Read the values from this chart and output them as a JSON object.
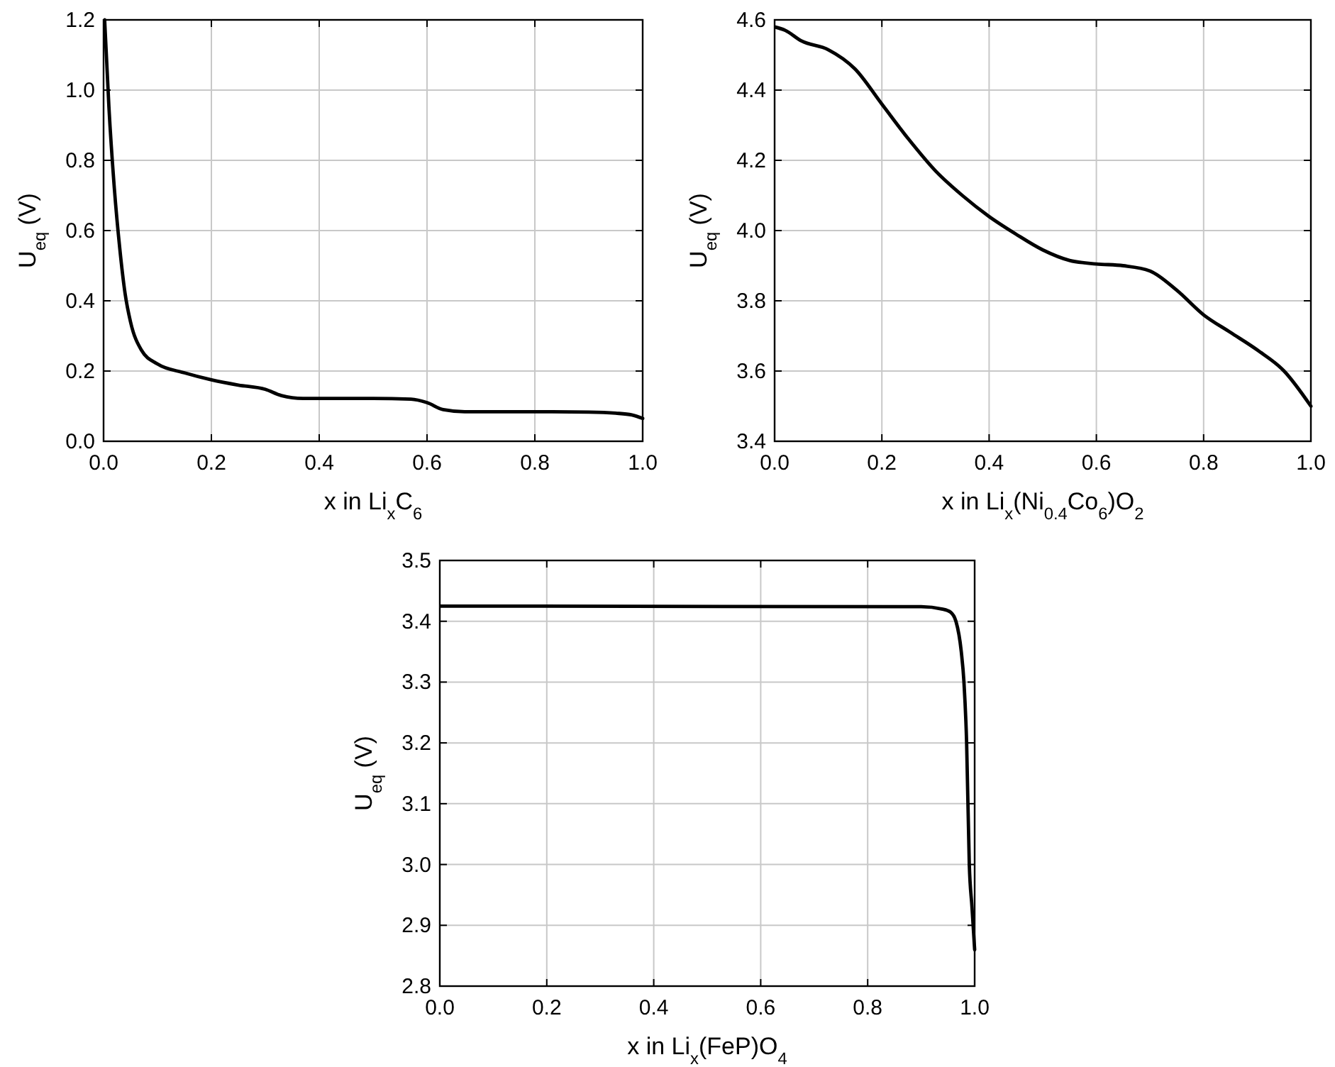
{
  "chart_data": [
    {
      "type": "line",
      "xlabel": "x in Li$_{x}$C$_{6}$",
      "ylabel": "U$_{eq}$ (V)",
      "xlim": [
        0,
        1
      ],
      "ylim": [
        0,
        1.2
      ],
      "grid": true,
      "xticks": [
        {
          "value": 0,
          "label": "0.0"
        },
        {
          "value": 0.2,
          "label": "0.2"
        },
        {
          "value": 0.4,
          "label": "0.4"
        },
        {
          "value": 0.6,
          "label": "0.6"
        },
        {
          "value": 0.8,
          "label": "0.8"
        },
        {
          "value": 1,
          "label": "1.0"
        }
      ],
      "yticks": [
        {
          "value": 0,
          "label": "0.0"
        },
        {
          "value": 0.2,
          "label": "0.2"
        },
        {
          "value": 0.4,
          "label": "0.4"
        },
        {
          "value": 0.6,
          "label": "0.6"
        },
        {
          "value": 0.8,
          "label": "0.8"
        },
        {
          "value": 1,
          "label": "1.0"
        },
        {
          "value": 1.2,
          "label": "1.2"
        }
      ],
      "x": [
        0.002,
        0.01,
        0.02,
        0.03,
        0.04,
        0.05,
        0.07,
        0.1,
        0.15,
        0.2,
        0.25,
        0.3,
        0.33,
        0.37,
        0.5,
        0.57,
        0.6,
        0.63,
        0.67,
        0.8,
        0.9,
        0.95,
        0.98,
        1.0
      ],
      "series": [
        {
          "color": "#000000",
          "values": [
            1.2,
            0.95,
            0.72,
            0.55,
            0.42,
            0.34,
            0.26,
            0.22,
            0.195,
            0.175,
            0.16,
            0.148,
            0.13,
            0.122,
            0.122,
            0.12,
            0.11,
            0.09,
            0.084,
            0.084,
            0.083,
            0.08,
            0.075,
            0.065
          ]
        }
      ]
    },
    {
      "type": "line",
      "xlabel": "x in Li$_{x}$(Ni$_{0.4}$Co$_{6}$)O$_{2}$",
      "ylabel": "U$_{eq}$ (V)",
      "xlim": [
        0,
        1
      ],
      "ylim": [
        3.4,
        4.6
      ],
      "grid": true,
      "xticks": [
        {
          "value": 0,
          "label": "0.0"
        },
        {
          "value": 0.2,
          "label": "0.2"
        },
        {
          "value": 0.4,
          "label": "0.4"
        },
        {
          "value": 0.6,
          "label": "0.6"
        },
        {
          "value": 0.8,
          "label": "0.8"
        },
        {
          "value": 1,
          "label": "1.0"
        }
      ],
      "yticks": [
        3.4,
        3.6,
        3.8,
        {
          "value": 4,
          "label": "4.0"
        },
        4.2,
        4.4,
        4.6
      ],
      "x": [
        0,
        0.02,
        0.05,
        0.1,
        0.15,
        0.2,
        0.25,
        0.3,
        0.35,
        0.4,
        0.45,
        0.5,
        0.55,
        0.6,
        0.65,
        0.7,
        0.75,
        0.8,
        0.85,
        0.9,
        0.95,
        1.0
      ],
      "series": [
        {
          "color": "#000000",
          "values": [
            4.58,
            4.57,
            4.54,
            4.515,
            4.46,
            4.36,
            4.26,
            4.17,
            4.1,
            4.04,
            3.99,
            3.945,
            3.915,
            3.905,
            3.9,
            3.885,
            3.83,
            3.76,
            3.71,
            3.66,
            3.6,
            3.5
          ]
        }
      ]
    },
    {
      "type": "line",
      "xlabel": "x in Li$_{x}$(FeP)O$_{4}$",
      "ylabel": "U$_{eq}$ (V)",
      "xlim": [
        0,
        1
      ],
      "ylim": [
        2.8,
        3.5
      ],
      "grid": true,
      "xticks": [
        {
          "value": 0,
          "label": "0.0"
        },
        {
          "value": 0.2,
          "label": "0.2"
        },
        {
          "value": 0.4,
          "label": "0.4"
        },
        {
          "value": 0.6,
          "label": "0.6"
        },
        {
          "value": 0.8,
          "label": "0.8"
        },
        {
          "value": 1,
          "label": "1.0"
        }
      ],
      "yticks": [
        2.8,
        2.9,
        {
          "value": 3,
          "label": "3.0"
        },
        3.1,
        3.2,
        3.3,
        3.4,
        3.5
      ],
      "x": [
        0,
        0.9,
        0.94,
        0.955,
        0.965,
        0.975,
        0.98,
        0.985,
        0.99,
        0.995,
        1.0
      ],
      "series": [
        {
          "color": "#000000",
          "values": [
            3.425,
            3.424,
            3.42,
            3.415,
            3.4,
            3.35,
            3.3,
            3.2,
            3.0,
            2.93,
            2.86
          ]
        }
      ]
    }
  ]
}
